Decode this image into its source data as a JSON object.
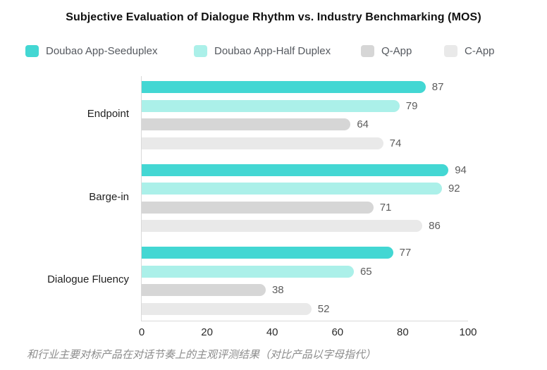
{
  "chart": {
    "title": "Subjective Evaluation of Dialogue Rhythm vs. Industry Benchmarking (MOS)",
    "caption": "和行业主要对标产品在对话节奏上的主观评测结果（对比产品以字母指代）"
  },
  "chart_data": {
    "type": "bar",
    "orientation": "horizontal",
    "title": "Subjective Evaluation of Dialogue Rhythm vs. Industry Benchmarking (MOS)",
    "categories": [
      "Endpoint",
      "Barge-in",
      "Dialogue Fluency"
    ],
    "series": [
      {
        "name": "Doubao App-Seeduplex",
        "color": "#43d7d3",
        "values": [
          87,
          94,
          77
        ]
      },
      {
        "name": "Doubao App-Half Duplex",
        "color": "#abf0e9",
        "values": [
          79,
          92,
          65
        ]
      },
      {
        "name": "Q-App",
        "color": "#d6d6d6",
        "values": [
          64,
          71,
          38
        ]
      },
      {
        "name": "C-App",
        "color": "#e9e9e9",
        "values": [
          74,
          86,
          52
        ]
      }
    ],
    "xlim": [
      0,
      100
    ],
    "xticks": [
      0,
      20,
      40,
      60,
      80,
      100
    ],
    "value_labels": true,
    "grid": false,
    "legend_position": "top",
    "axis_color": "#d9d9d9",
    "value_label_color": "#5c5c5c",
    "caption": "和行业主要对标产品在对话节奏上的主观评测结果（对比产品以字母指代）"
  }
}
